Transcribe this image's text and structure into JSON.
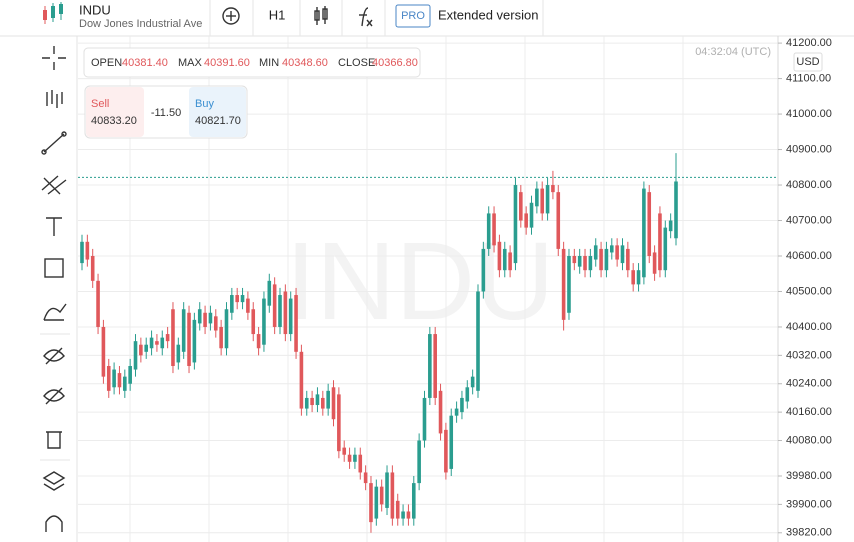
{
  "header": {
    "symbol": "INDU",
    "name": "Dow Jones Industrial Ave",
    "interval": "H1",
    "pro_badge": "PRO",
    "extended": "Extended version"
  },
  "ohlc_box": {
    "open_label": "OPEN",
    "open": "40381.40",
    "max_label": "MAX",
    "max": "40391.60",
    "min_label": "MIN",
    "min": "40348.60",
    "close_label": "CLOSE",
    "close": "40366.80"
  },
  "trade_box": {
    "sell_label": "Sell",
    "sell": "40833.20",
    "spread": "-11.50",
    "buy_label": "Buy",
    "buy": "40821.70"
  },
  "clock": "04:32:04 (UTC)",
  "currency": "USD",
  "watermark": "INDU",
  "chart_data": {
    "type": "candlestick",
    "up_color": "#2a9d8f",
    "down_color": "#e0585b",
    "grid": true,
    "ylim": [
      39794,
      41220
    ],
    "yticks": [
      {
        "value": 41200,
        "label": "41200.00"
      },
      {
        "value": 41100,
        "label": "41100.00"
      },
      {
        "value": 41000,
        "label": "41000.00"
      },
      {
        "value": 40900,
        "label": "40900.00"
      },
      {
        "value": 40800,
        "label": "40800.00"
      },
      {
        "value": 40700,
        "label": "40700.00"
      },
      {
        "value": 40600,
        "label": "40600.00"
      },
      {
        "value": 40500,
        "label": "40500.00"
      },
      {
        "value": 40400,
        "label": "40400.00"
      },
      {
        "value": 40320,
        "label": "40320.00"
      },
      {
        "value": 40240,
        "label": "40240.00"
      },
      {
        "value": 40160,
        "label": "40160.00"
      },
      {
        "value": 40080,
        "label": "40080.00"
      },
      {
        "value": 39980,
        "label": "39980.00"
      },
      {
        "value": 39900,
        "label": "39900.00"
      },
      {
        "value": 39820,
        "label": "39820.00"
      }
    ],
    "price_line": 40821.7,
    "price_line_color": "#2a9d8f",
    "open": [
      40580,
      40640,
      40600,
      40530,
      40400,
      40290,
      40230,
      40270,
      40220,
      40240,
      40280,
      40350,
      40330,
      40340,
      40360,
      40340,
      40380,
      40450,
      40300,
      40330,
      40440,
      40300,
      40410,
      40440,
      40410,
      40430,
      40400,
      40340,
      40440,
      40490,
      40470,
      40480,
      40450,
      40380,
      40350,
      40460,
      40520,
      40400,
      40500,
      40380,
      40490,
      40330,
      40170,
      40200,
      40180,
      40200,
      40170,
      40230,
      40210,
      40060,
      40040,
      40020,
      40040,
      39990,
      39960,
      39860,
      39950,
      39890,
      39990,
      39910,
      39860,
      39880,
      39860,
      39960,
      40080,
      40200,
      40380,
      40220,
      40110,
      40000,
      40150,
      40160,
      40190,
      40230,
      40220,
      40500,
      40620,
      40720,
      40640,
      40560,
      40610,
      40580,
      40780,
      40720,
      40680,
      40740,
      40790,
      40720,
      40800,
      40780,
      40620,
      40440,
      40600,
      40570,
      40600,
      40560,
      40590,
      40620,
      40560,
      40610,
      40630,
      40580,
      40620,
      40560,
      40520,
      40540,
      40780,
      40610,
      40720,
      40560,
      40670,
      40650
    ],
    "high": [
      40660,
      40660,
      40620,
      40550,
      40420,
      40310,
      40300,
      40290,
      40280,
      40310,
      40380,
      40370,
      40370,
      40390,
      40380,
      40390,
      40400,
      40470,
      40370,
      40470,
      40460,
      40440,
      40470,
      40460,
      40460,
      40450,
      40420,
      40470,
      40510,
      40510,
      40510,
      40500,
      40470,
      40400,
      40500,
      40550,
      40540,
      40510,
      40520,
      40500,
      40510,
      40350,
      40220,
      40220,
      40230,
      40220,
      40240,
      40250,
      40230,
      40080,
      40060,
      40060,
      40060,
      40010,
      39980,
      39970,
      39970,
      40010,
      40010,
      39930,
      39900,
      39900,
      39980,
      40100,
      40220,
      40400,
      40400,
      40240,
      40130,
      40170,
      40190,
      40220,
      40250,
      40280,
      40520,
      40640,
      40740,
      40740,
      40660,
      40640,
      40630,
      40820,
      40800,
      40740,
      40770,
      40810,
      40810,
      40820,
      40840,
      40800,
      40640,
      40620,
      40620,
      40620,
      40620,
      40620,
      40650,
      40640,
      40640,
      40650,
      40650,
      40650,
      40640,
      40580,
      40580,
      40810,
      40800,
      40630,
      40740,
      40700,
      40720,
      40890
    ],
    "low": [
      40560,
      40570,
      40510,
      40380,
      40240,
      40200,
      40210,
      40210,
      40200,
      40220,
      40260,
      40300,
      40310,
      40320,
      40330,
      40320,
      40340,
      40270,
      40280,
      40310,
      40270,
      40280,
      40390,
      40380,
      40390,
      40370,
      40320,
      40320,
      40420,
      40450,
      40450,
      40420,
      40360,
      40320,
      40330,
      40440,
      40380,
      40380,
      40360,
      40360,
      40310,
      40150,
      40150,
      40160,
      40160,
      40150,
      40150,
      40120,
      40030,
      40020,
      40000,
      40000,
      39970,
      39940,
      39820,
      39840,
      39880,
      39870,
      39840,
      39840,
      39840,
      39840,
      39840,
      39940,
      40060,
      40180,
      40180,
      40080,
      39970,
      39980,
      40130,
      40140,
      40170,
      40210,
      40200,
      40480,
      40600,
      40610,
      40540,
      40540,
      40540,
      40560,
      40680,
      40660,
      40660,
      40720,
      40700,
      40700,
      40760,
      40600,
      40390,
      40420,
      40560,
      40550,
      40540,
      40540,
      40570,
      40540,
      40540,
      40590,
      40570,
      40560,
      40540,
      40500,
      40500,
      40520,
      40580,
      40530,
      40540,
      40540,
      40650,
      40630
    ],
    "close": [
      40640,
      40590,
      40530,
      40400,
      40260,
      40220,
      40280,
      40230,
      40260,
      40290,
      40360,
      40320,
      40350,
      40370,
      40350,
      40370,
      40360,
      40290,
      40350,
      40450,
      40290,
      40420,
      40450,
      40400,
      40440,
      40390,
      40340,
      40450,
      40490,
      40470,
      40490,
      40440,
      40380,
      40340,
      40480,
      40530,
      40400,
      40490,
      40380,
      40480,
      40330,
      40170,
      40200,
      40180,
      40210,
      40170,
      40220,
      40140,
      40050,
      40040,
      40020,
      40040,
      39990,
      39960,
      39850,
      39950,
      39900,
      39990,
      39860,
      39860,
      39880,
      39860,
      39960,
      40080,
      40200,
      40380,
      40200,
      40100,
      39990,
      40150,
      40170,
      40200,
      40230,
      40260,
      40500,
      40620,
      40720,
      40630,
      40560,
      40620,
      40560,
      40800,
      40700,
      40680,
      40750,
      40790,
      40720,
      40800,
      40780,
      40620,
      40420,
      40600,
      40580,
      40600,
      40560,
      40600,
      40630,
      40560,
      40620,
      40630,
      40590,
      40630,
      40560,
      40520,
      40560,
      40790,
      40600,
      40550,
      40560,
      40680,
      40700,
      40810
    ]
  }
}
